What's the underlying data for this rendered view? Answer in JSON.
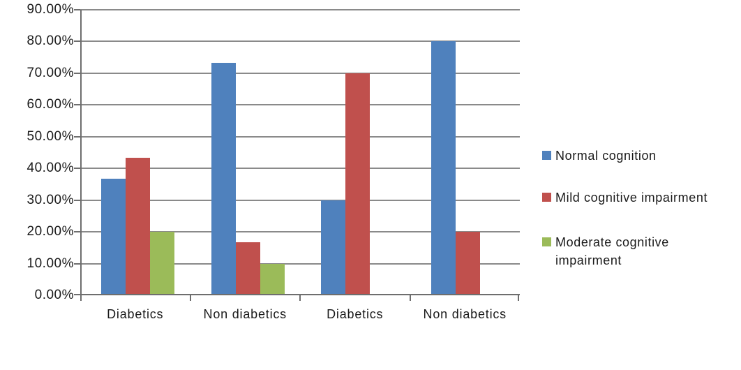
{
  "chart_data": {
    "type": "bar",
    "title": "",
    "xlabel": "",
    "ylabel": "",
    "categories": [
      "Diabetics",
      "Non diabetics",
      "Diabetics",
      "Non diabetics"
    ],
    "series": [
      {
        "name": "Normal cognition",
        "color": "#4F81BD",
        "values": [
          36.7,
          73.3,
          30,
          80
        ]
      },
      {
        "name": "Mild cognitive impairment",
        "color": "#C0504D",
        "values": [
          43.3,
          16.7,
          70,
          20
        ]
      },
      {
        "name": "Moderate cognitive impairment",
        "color": "#9BBB59",
        "values": [
          20,
          10,
          0,
          0
        ]
      }
    ],
    "ylim": [
      0,
      90
    ],
    "ytick_step": 10,
    "ytick_labels": [
      "0.00%",
      "10.00%",
      "20.00%",
      "30.00%",
      "40.00%",
      "50.00%",
      "60.00%",
      "70.00%",
      "80.00%",
      "90.00%"
    ],
    "grid": true,
    "legend_position": "right"
  },
  "colors": {
    "background": "#ffffff",
    "gridline": "#8a8a8a",
    "axis": "#6e6e6e",
    "text": "#1a1a1a"
  }
}
